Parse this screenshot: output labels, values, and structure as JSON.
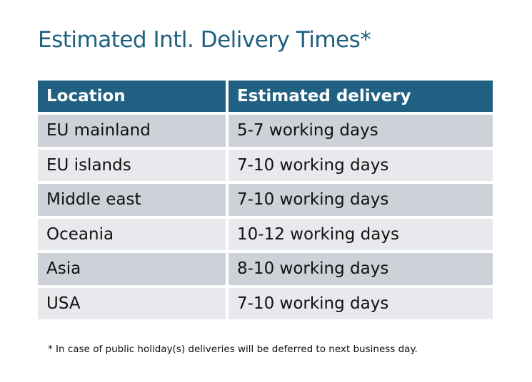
{
  "title": "Estimated Intl. Delivery Times*",
  "table": {
    "headers": [
      "Location",
      "Estimated delivery"
    ],
    "rows": [
      [
        "EU mainland",
        "5-7 working days"
      ],
      [
        "EU islands",
        "7-10 working days"
      ],
      [
        "Middle east",
        "7-10 working days"
      ],
      [
        "Oceania",
        "10-12 working days"
      ],
      [
        "Asia",
        "8-10 working days"
      ],
      [
        "USA",
        "7-10 working days"
      ]
    ]
  },
  "footnote": "* In case of public holiday(s) deliveries will be deferred to next business day.",
  "colors": {
    "header": "#206082",
    "title": "#1f5f7f",
    "row_dark": "#cdd1d8",
    "row_light": "#e7e9ec"
  }
}
